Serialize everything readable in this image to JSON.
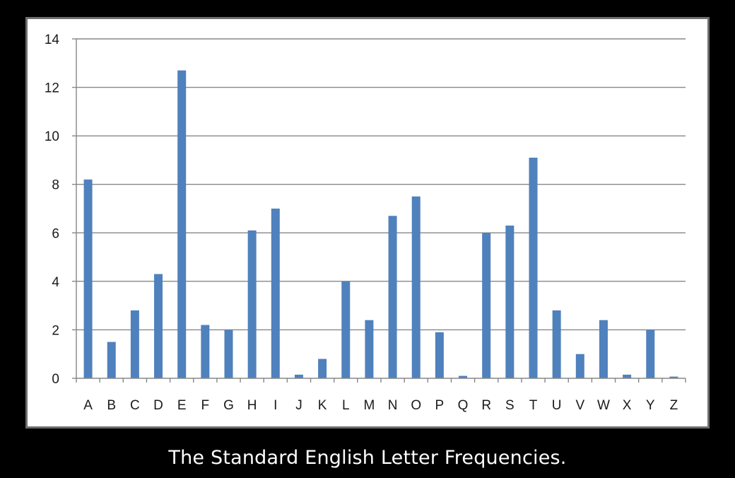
{
  "caption": "The Standard English Letter Frequencies.",
  "chart_data": {
    "type": "bar",
    "categories": [
      "A",
      "B",
      "C",
      "D",
      "E",
      "F",
      "G",
      "H",
      "I",
      "J",
      "K",
      "L",
      "M",
      "N",
      "O",
      "P",
      "Q",
      "R",
      "S",
      "T",
      "U",
      "V",
      "W",
      "X",
      "Y",
      "Z"
    ],
    "values": [
      8.2,
      1.5,
      2.8,
      4.3,
      12.7,
      2.2,
      2.0,
      6.1,
      7.0,
      0.15,
      0.8,
      4.0,
      2.4,
      6.7,
      7.5,
      1.9,
      0.1,
      6.0,
      6.3,
      9.1,
      2.8,
      1.0,
      2.4,
      0.15,
      2.0,
      0.07
    ],
    "title": "",
    "xlabel": "",
    "ylabel": "",
    "ylim": [
      0,
      14
    ],
    "yticks": [
      0,
      2,
      4,
      6,
      8,
      10,
      12,
      14
    ],
    "grid": true,
    "legend": "none",
    "bar_color": "#4f81bd",
    "grid_color": "#878787"
  }
}
